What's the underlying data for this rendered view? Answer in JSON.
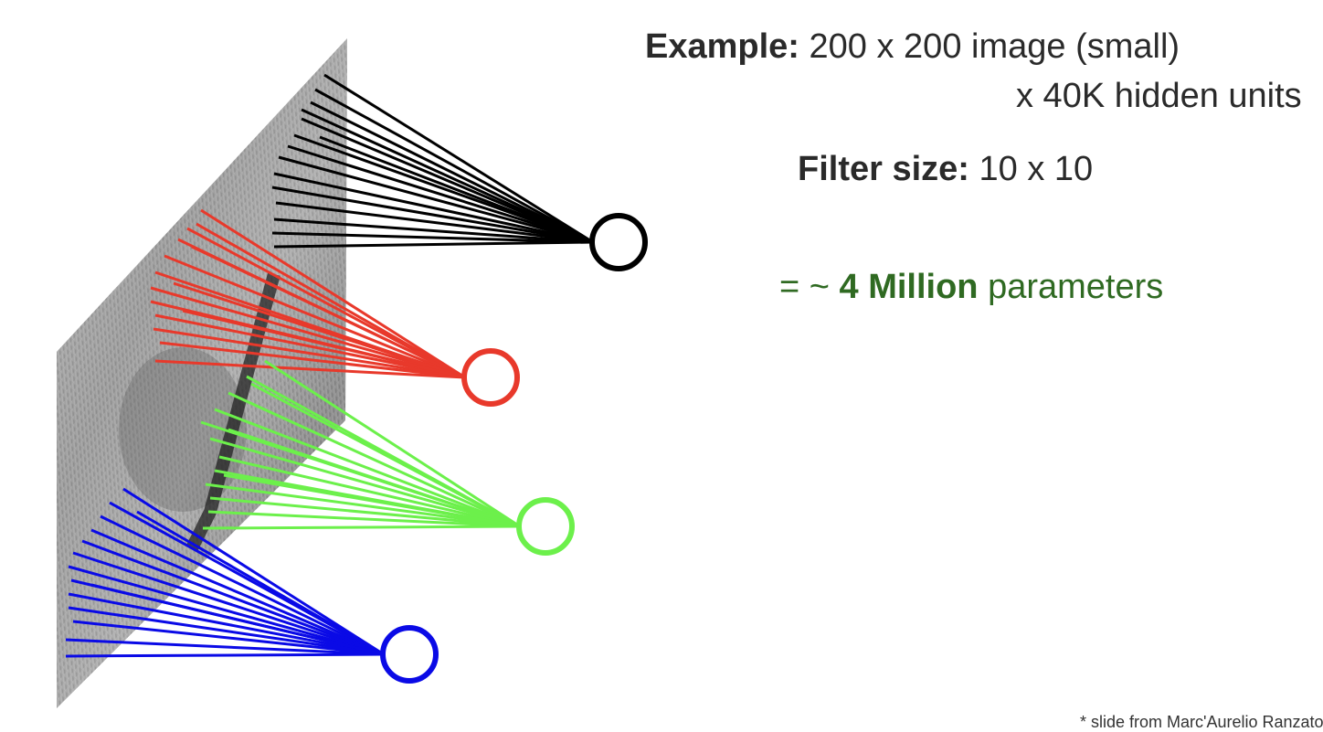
{
  "example": {
    "label": "Example:",
    "value": "200 x 200 image (small)"
  },
  "hidden_units": "x 40K hidden units",
  "filter": {
    "label": "Filter size:",
    "value": "10 x 10"
  },
  "params": {
    "prefix": "= ~",
    "value": "4 Million",
    "suffix": "parameters"
  },
  "credit": "* slide from Marc'Aurelio Ranzato",
  "colors": {
    "black_unit": "#000000",
    "red_unit": "#e8392b",
    "green_unit": "#6cf04b",
    "blue_unit": "#0a0ae6",
    "params_text": "#2f6a22"
  },
  "units": [
    {
      "name": "black-hidden-unit",
      "color_key": "black_unit"
    },
    {
      "name": "red-hidden-unit",
      "color_key": "red_unit"
    },
    {
      "name": "green-hidden-unit",
      "color_key": "green_unit"
    },
    {
      "name": "blue-hidden-unit",
      "color_key": "blue_unit"
    }
  ]
}
